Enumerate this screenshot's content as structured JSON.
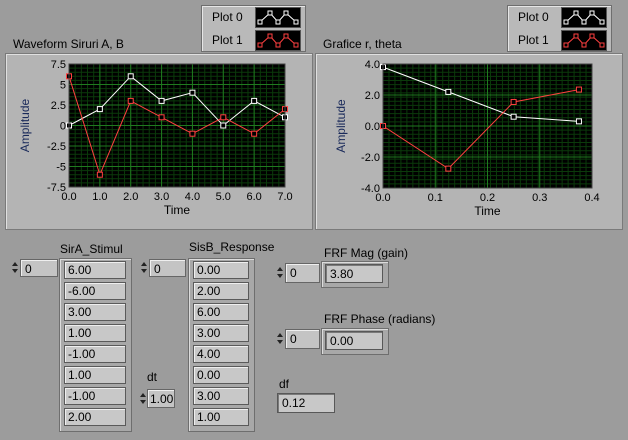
{
  "graphA": {
    "label": "Waveform Siruri A, B",
    "xlabel": "Time",
    "ylabel": "Amplitude",
    "xticks": [
      "0.0",
      "1.0",
      "2.0",
      "3.0",
      "4.0",
      "5.0",
      "6.0",
      "7.0"
    ],
    "yticks": [
      "7.5",
      "5",
      "2.5",
      "0",
      "-2.5",
      "-5",
      "-7.5"
    ],
    "legend": [
      "Plot 0",
      "Plot 1"
    ]
  },
  "graphB": {
    "label": "Grafice r, theta",
    "xlabel": "Time",
    "ylabel": "Amplitude",
    "xticks": [
      "0.0",
      "0.1",
      "0.2",
      "0.3",
      "0.4"
    ],
    "yticks": [
      "4.0",
      "2.0",
      "0.0",
      "-2.0",
      "-4.0"
    ],
    "legend": [
      "Plot 0",
      "Plot 1"
    ]
  },
  "chart_data": [
    {
      "type": "line",
      "title": "Waveform Siruri A, B",
      "xlabel": "Time",
      "ylabel": "Amplitude",
      "xlim": [
        0,
        7
      ],
      "ylim": [
        -7.5,
        7.5
      ],
      "grid": true,
      "legend": "top-right",
      "x": [
        0,
        1,
        2,
        3,
        4,
        5,
        6,
        7
      ],
      "series": [
        {
          "name": "Plot 0",
          "color": "#ffffff",
          "values": [
            0,
            2,
            6,
            3,
            4,
            0,
            3,
            1
          ]
        },
        {
          "name": "Plot 1",
          "color": "#ff4040",
          "values": [
            6,
            -6,
            3,
            1,
            -1,
            1,
            -1,
            2
          ]
        }
      ]
    },
    {
      "type": "line",
      "title": "Grafice r, theta",
      "xlabel": "Time",
      "ylabel": "Amplitude",
      "xlim": [
        0,
        0.4
      ],
      "ylim": [
        -4,
        4
      ],
      "grid": true,
      "legend": "top-right",
      "x": [
        0,
        0.125,
        0.25,
        0.375
      ],
      "series": [
        {
          "name": "Plot 0",
          "color": "#ffffff",
          "values": [
            3.8,
            2.2,
            0.6,
            0.3
          ]
        },
        {
          "name": "Plot 1",
          "color": "#ff4040",
          "values": [
            0.0,
            -2.75,
            1.55,
            2.35
          ]
        }
      ]
    }
  ],
  "sirA": {
    "label": "SirA_Stimul",
    "index": "0",
    "values": [
      "6.00",
      "-6.00",
      "3.00",
      "1.00",
      "-1.00",
      "1.00",
      "-1.00",
      "2.00"
    ]
  },
  "sisB": {
    "label": "SisB_Response",
    "index": "0",
    "values": [
      "0.00",
      "2.00",
      "6.00",
      "3.00",
      "4.00",
      "0.00",
      "3.00",
      "1.00"
    ]
  },
  "dt": {
    "label": "dt",
    "value": "1.00"
  },
  "frf_mag": {
    "label": "FRF Mag (gain)",
    "index": "0",
    "value": "3.80"
  },
  "frf_phase": {
    "label": "FRF Phase (radians)",
    "index": "0",
    "value": "0.00"
  },
  "df": {
    "label": "df",
    "value": "0.12"
  }
}
